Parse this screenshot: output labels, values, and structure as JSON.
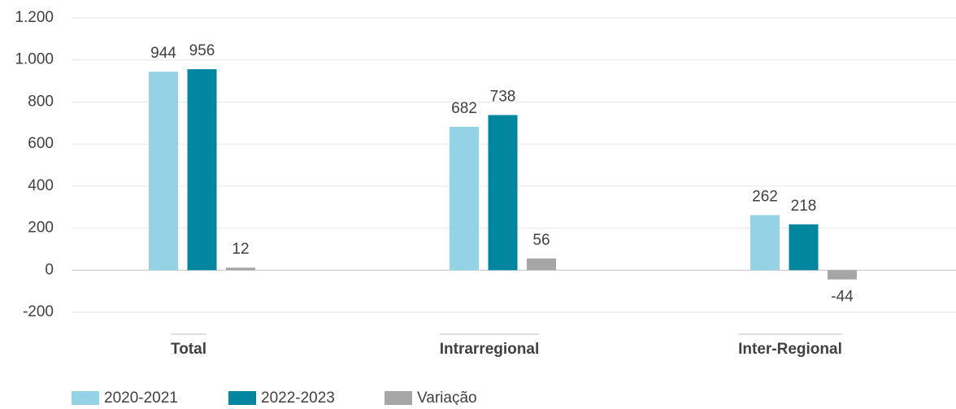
{
  "chart_data": {
    "type": "bar",
    "categories": [
      "Total",
      "Intrarregional",
      "Inter-Regional"
    ],
    "series": [
      {
        "name": "2020-2021",
        "color": "#93d3e5",
        "values": [
          944,
          682,
          262
        ]
      },
      {
        "name": "2022-2023",
        "color": "#00879f",
        "values": [
          956,
          738,
          218
        ]
      },
      {
        "name": "Variação",
        "color": "#a6a6a6",
        "values": [
          12,
          56,
          -44
        ]
      }
    ],
    "ylim": [
      -200,
      1200
    ],
    "yticks": [
      -200,
      0,
      200,
      400,
      600,
      800,
      {
        "value": 1000,
        "label": "1.000"
      },
      {
        "value": 1200,
        "label": "1.200"
      }
    ],
    "grid": true
  }
}
